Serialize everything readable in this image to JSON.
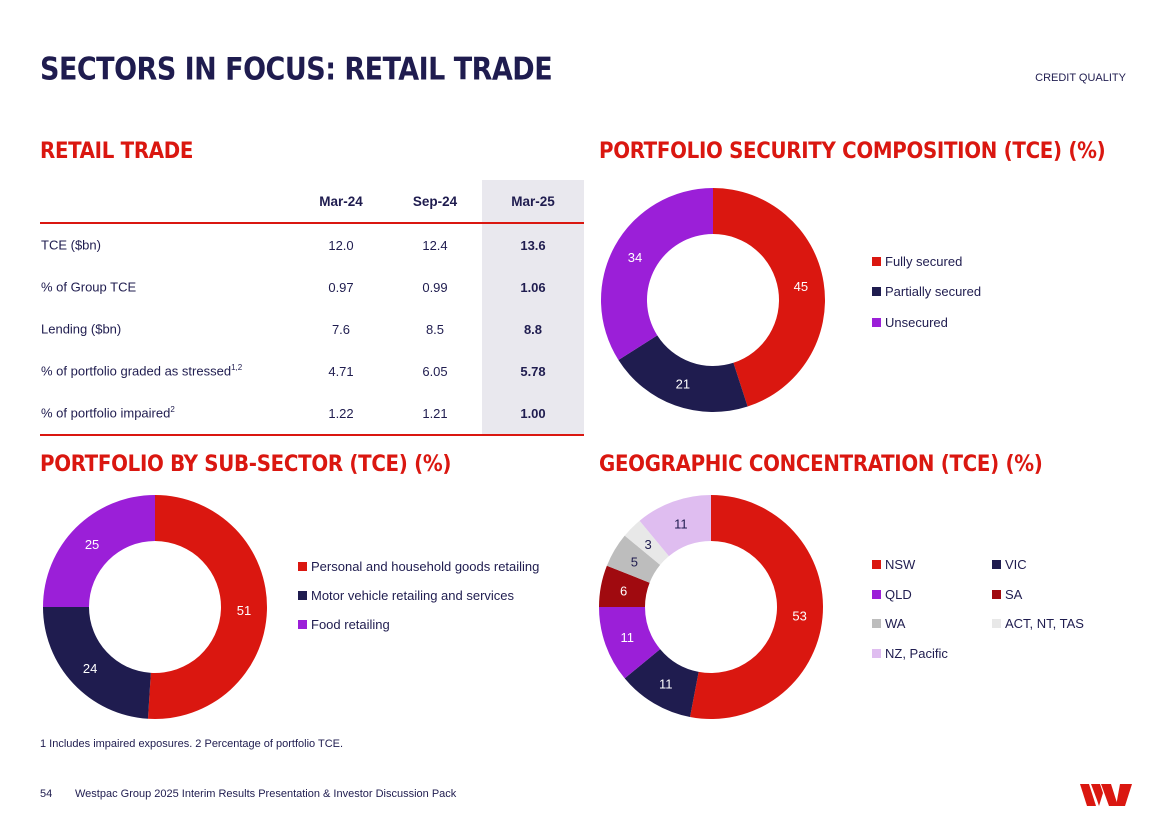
{
  "header": {
    "title": "SECTORS IN FOCUS: RETAIL TRADE",
    "section": "CREDIT QUALITY"
  },
  "retail_table": {
    "heading": "RETAIL TRADE",
    "columns": [
      "Mar-24",
      "Sep-24",
      "Mar-25"
    ],
    "rows": [
      {
        "label": "TCE ($bn)",
        "sup": "",
        "values": [
          "12.0",
          "12.4",
          "13.6"
        ]
      },
      {
        "label": "% of Group TCE",
        "sup": "",
        "values": [
          "0.97",
          "0.99",
          "1.06"
        ]
      },
      {
        "label": "Lending ($bn)",
        "sup": "",
        "values": [
          "7.6",
          "8.5",
          "8.8"
        ]
      },
      {
        "label": "% of portfolio graded as stressed",
        "sup": "1,2",
        "values": [
          "4.71",
          "6.05",
          "5.78"
        ]
      },
      {
        "label": "% of portfolio impaired",
        "sup": "2",
        "values": [
          "1.22",
          "1.21",
          "1.00"
        ]
      }
    ]
  },
  "colors": {
    "red": "#da1710",
    "navy": "#1f1c4f",
    "purple": "#9b1fd8",
    "darkred": "#a00a0f",
    "grey": "#bdbdbd",
    "lightgrey": "#e8e8e8",
    "lavender": "#dfbdf0"
  },
  "chart_data": [
    {
      "id": "security",
      "type": "pie",
      "title": "PORTFOLIO SECURITY COMPOSITION (TCE) (%)",
      "slices": [
        {
          "label": "Fully secured",
          "value": 45,
          "color": "#da1710"
        },
        {
          "label": "Partially secured",
          "value": 21,
          "color": "#1f1c4f"
        },
        {
          "label": "Unsecured",
          "value": 34,
          "color": "#9b1fd8"
        }
      ]
    },
    {
      "id": "subsector",
      "type": "pie",
      "title": "PORTFOLIO BY SUB-SECTOR (TCE) (%)",
      "slices": [
        {
          "label": "Personal and household goods retailing",
          "value": 51,
          "color": "#da1710"
        },
        {
          "label": "Motor vehicle retailing and services",
          "value": 24,
          "color": "#1f1c4f"
        },
        {
          "label": "Food retailing",
          "value": 25,
          "color": "#9b1fd8"
        }
      ]
    },
    {
      "id": "geo",
      "type": "pie",
      "title": "GEOGRAPHIC CONCENTRATION (TCE) (%)",
      "slices": [
        {
          "label": "NSW",
          "value": 53,
          "color": "#da1710"
        },
        {
          "label": "VIC",
          "value": 11,
          "color": "#1f1c4f"
        },
        {
          "label": "QLD",
          "value": 11,
          "color": "#9b1fd8"
        },
        {
          "label": "SA",
          "value": 6,
          "color": "#a00a0f"
        },
        {
          "label": "WA",
          "value": 5,
          "color": "#bdbdbd"
        },
        {
          "label": "ACT, NT, TAS",
          "value": 3,
          "color": "#e8e8e8"
        },
        {
          "label": "NZ, Pacific",
          "value": 11,
          "color": "#dfbdf0"
        }
      ]
    }
  ],
  "footnote": "1 Includes impaired exposures. 2 Percentage of portfolio TCE.",
  "footer": {
    "page": "54",
    "text": "Westpac Group 2025 Interim Results Presentation & Investor Discussion Pack"
  },
  "logo": {
    "icon": "westpac-w-logo"
  }
}
